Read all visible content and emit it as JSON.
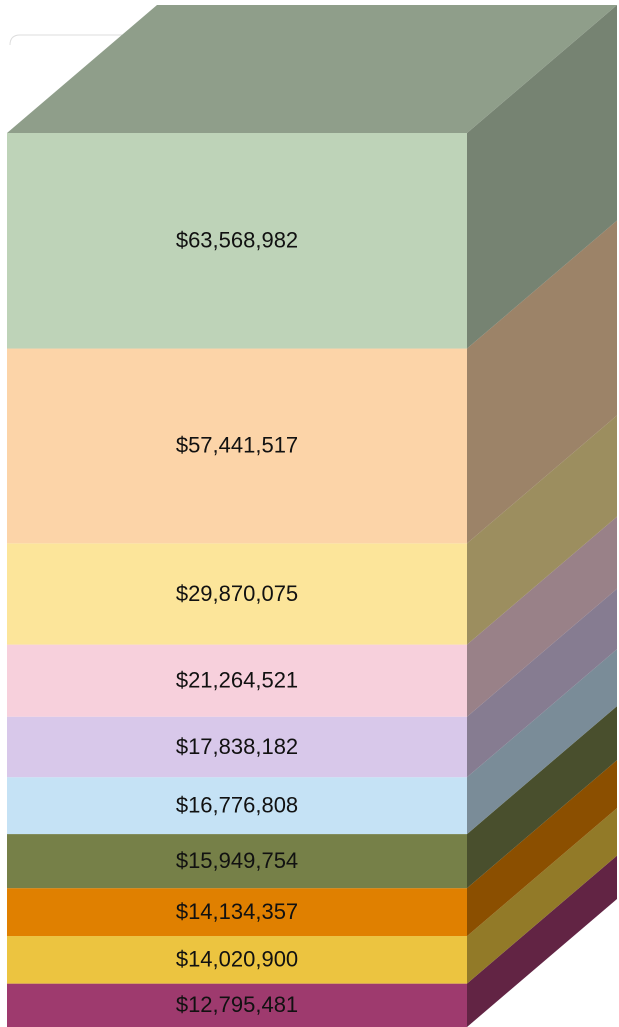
{
  "chart_data": {
    "type": "bar",
    "stacked": true,
    "three_d": true,
    "values": [
      12795481,
      14020900,
      14134357,
      15949754,
      16776808,
      17838182,
      21264521,
      29870075,
      57441517,
      63568982
    ],
    "value_labels": [
      "$12,795,481",
      "$14,020,900",
      "$14,134,357",
      "$15,949,754",
      "$16,776,808",
      "$17,838,182",
      "$21,264,521",
      "$29,870,075",
      "$57,441,517",
      "$63,568,982"
    ],
    "colors": [
      "#9e3a6e",
      "#ecc440",
      "#e08000",
      "#768048",
      "#c5e2f5",
      "#d8c8ea",
      "#f7d0dc",
      "#fce59a",
      "#fcd4a8",
      "#bed3b8"
    ]
  }
}
